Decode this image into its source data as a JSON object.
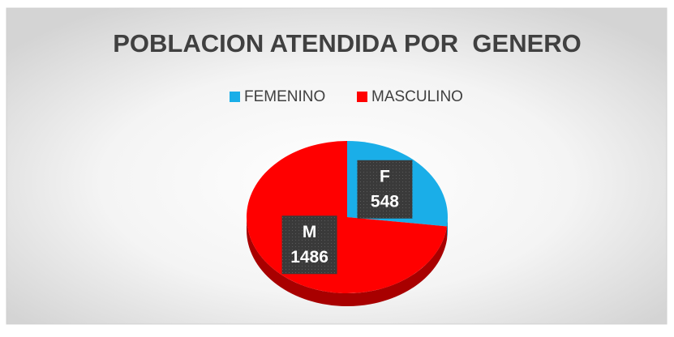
{
  "chart_data": {
    "type": "pie3d",
    "title": "POBLACION ATENDIDA POR  GENERO",
    "categories": [
      "FEMENINO",
      "MASCULINO"
    ],
    "short_labels": [
      "F",
      "M"
    ],
    "values": [
      548,
      1486
    ],
    "colors": [
      "#1aaee8",
      "#ff0000"
    ],
    "side_colors": [
      "#0d7fae",
      "#a80000"
    ],
    "legend": "top"
  }
}
